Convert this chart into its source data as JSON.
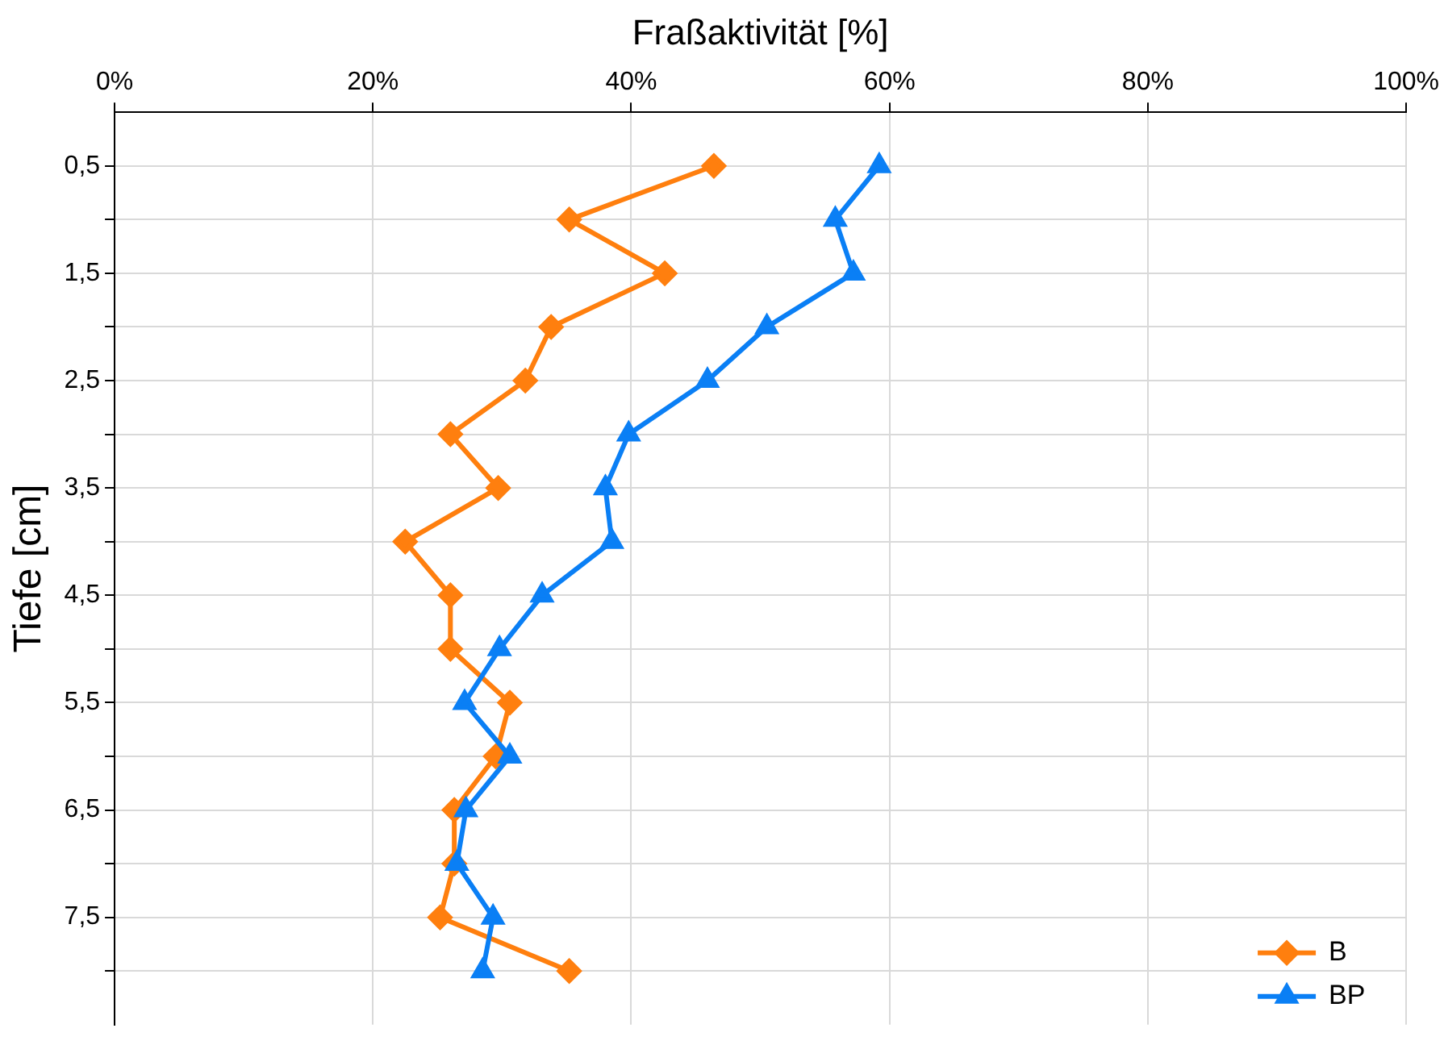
{
  "chart_data": {
    "type": "line",
    "xlabel": "Fraßaktivität [%]",
    "ylabel": "Tiefe [cm]",
    "xlim": [
      0,
      100
    ],
    "xticks": [
      {
        "value": 0,
        "label": "0%"
      },
      {
        "value": 20,
        "label": "20%"
      },
      {
        "value": 40,
        "label": "40%"
      },
      {
        "value": 60,
        "label": "60%"
      },
      {
        "value": 80,
        "label": "80%"
      },
      {
        "value": 100,
        "label": "100%"
      }
    ],
    "ylim": [
      8.5,
      0
    ],
    "yticks": [
      {
        "value": 0.5,
        "label": "0,5"
      },
      {
        "value": 1,
        "label": null
      },
      {
        "value": 1.5,
        "label": "1,5"
      },
      {
        "value": 2,
        "label": null
      },
      {
        "value": 2.5,
        "label": "2,5"
      },
      {
        "value": 3,
        "label": null
      },
      {
        "value": 3.5,
        "label": "3,5"
      },
      {
        "value": 4,
        "label": null
      },
      {
        "value": 4.5,
        "label": "4,5"
      },
      {
        "value": 5,
        "label": null
      },
      {
        "value": 5.5,
        "label": "5,5"
      },
      {
        "value": 6,
        "label": null
      },
      {
        "value": 6.5,
        "label": "6,5"
      },
      {
        "value": 7,
        "label": null
      },
      {
        "value": 7.5,
        "label": "7,5"
      },
      {
        "value": 8,
        "label": null
      }
    ],
    "grid": true,
    "legend": "bottom right",
    "line_style": "solid",
    "series": [
      {
        "name": "B",
        "color": "#ff7f0e",
        "marker": "diamond",
        "x": [
          46.4,
          35.2,
          42.6,
          33.8,
          31.8,
          26.0,
          29.7,
          22.5,
          26.0,
          26.0,
          30.6,
          29.5,
          26.3,
          26.3,
          25.2,
          35.2
        ],
        "values": [
          0.5,
          1,
          1.5,
          2,
          2.5,
          3,
          3.5,
          4,
          4.5,
          5,
          5.5,
          6,
          6.5,
          7,
          7.5,
          8
        ]
      },
      {
        "name": "BP",
        "color": "#0a7ff5",
        "marker": "triangle",
        "x": [
          59.2,
          55.8,
          57.2,
          50.5,
          45.9,
          39.8,
          38.0,
          38.5,
          33.1,
          29.8,
          27.1,
          30.6,
          27.2,
          26.5,
          29.3,
          28.5
        ],
        "values": [
          0.5,
          1,
          1.5,
          2,
          2.5,
          3,
          3.5,
          4,
          4.5,
          5,
          5.5,
          6,
          6.5,
          7,
          7.5,
          8
        ]
      }
    ]
  }
}
